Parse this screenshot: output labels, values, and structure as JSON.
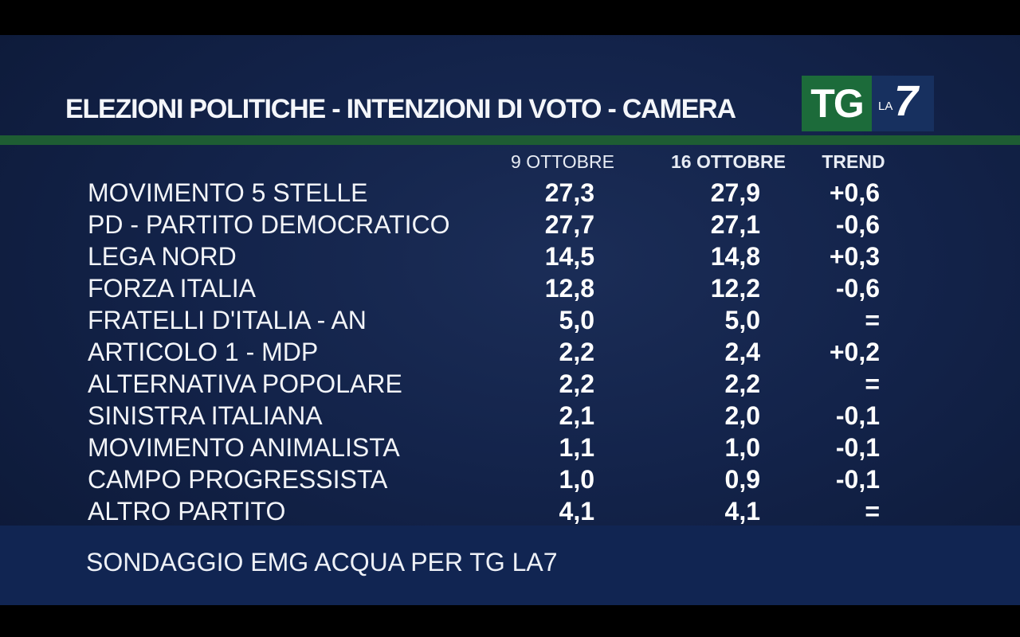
{
  "header": {
    "title": "ELEZIONI POLITICHE - INTENZIONI DI VOTO - CAMERA",
    "logo_tg": "TG",
    "logo_la": "LA",
    "logo_seven": "7"
  },
  "chart_data": {
    "type": "table",
    "columns": [
      "9 OTTOBRE",
      "16 OTTOBRE",
      "TREND"
    ],
    "rows": [
      {
        "party": "MOVIMENTO 5 STELLE",
        "oct9": "27,3",
        "oct16": "27,9",
        "trend": "+0,6"
      },
      {
        "party": "PD - PARTITO DEMOCRATICO",
        "oct9": "27,7",
        "oct16": "27,1",
        "trend": "-0,6"
      },
      {
        "party": "LEGA NORD",
        "oct9": "14,5",
        "oct16": "14,8",
        "trend": "+0,3"
      },
      {
        "party": "FORZA ITALIA",
        "oct9": "12,8",
        "oct16": "12,2",
        "trend": "-0,6"
      },
      {
        "party": "FRATELLI D'ITALIA - AN",
        "oct9": "5,0",
        "oct16": "5,0",
        "trend": "="
      },
      {
        "party": "ARTICOLO 1 - MDP",
        "oct9": "2,2",
        "oct16": "2,4",
        "trend": "+0,2"
      },
      {
        "party": "ALTERNATIVA POPOLARE",
        "oct9": "2,2",
        "oct16": "2,2",
        "trend": "="
      },
      {
        "party": "SINISTRA ITALIANA",
        "oct9": "2,1",
        "oct16": "2,0",
        "trend": "-0,1"
      },
      {
        "party": "MOVIMENTO ANIMALISTA",
        "oct9": "1,1",
        "oct16": "1,0",
        "trend": "-0,1"
      },
      {
        "party": "CAMPO PROGRESSISTA",
        "oct9": "1,0",
        "oct16": "0,9",
        "trend": "-0,1"
      },
      {
        "party": "ALTRO PARTITO",
        "oct9": "4,1",
        "oct16": "4,1",
        "trend": "="
      }
    ]
  },
  "footer": {
    "source": "SONDAGGIO EMG ACQUA PER TG LA7"
  },
  "colors": {
    "background": "#13234a",
    "accent_green": "#1e5d33",
    "logo_green": "#1c6b3a",
    "logo_blue": "#17305f"
  }
}
